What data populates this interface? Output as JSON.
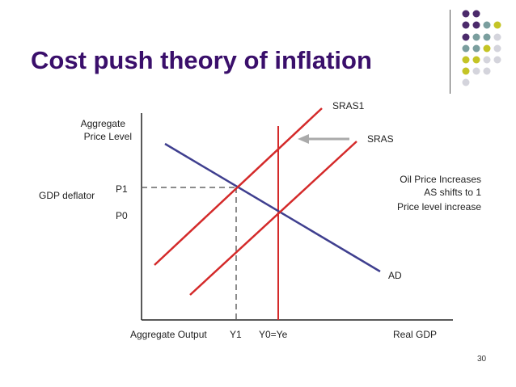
{
  "slide": {
    "title": "Cost push theory of inflation",
    "page_number": "30"
  },
  "diagram": {
    "y_axis_label_line1": "Aggregate",
    "y_axis_label_line2": "Price Level",
    "gdp_deflator_label": "GDP deflator",
    "p1_label": "P1",
    "p0_label": "P0",
    "x_axis_label": "Aggregate Output",
    "y1_label": "Y1",
    "y0_label": "Y0=Ye",
    "real_gdp_label": "Real GDP",
    "sras1_label": "SRAS1",
    "sras_label": "SRAS",
    "ad_label": "AD",
    "note_line1": "Oil Price Increases",
    "note_line2": "AS shifts to 1",
    "note_line3": "Price level increase"
  },
  "colors": {
    "title": "#3a0f6b",
    "supply_curves": "#d42a2a",
    "ad_curve": "#3f3f8f",
    "axes": "#222222",
    "decor_purple": "#4b2a6b",
    "decor_teal": "#7a9e9e",
    "decor_olive": "#c4c425",
    "decor_gray": "#d4d4dc"
  }
}
